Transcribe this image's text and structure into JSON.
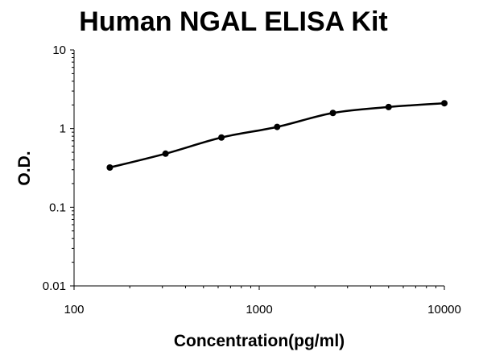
{
  "chart_data": {
    "type": "scatter",
    "title": "Human NGAL ELISA Kit",
    "xlabel": "Concentration(pg/ml)",
    "ylabel": "O.D.",
    "x_scale": "log",
    "y_scale": "log",
    "xlim": [
      100,
      10000
    ],
    "ylim": [
      0.01,
      10
    ],
    "x_ticks": [
      "100",
      "1000",
      "10000"
    ],
    "y_ticks": [
      "0.01",
      "0.1",
      "1",
      "10"
    ],
    "grid": false,
    "legend": "none",
    "series": [
      {
        "points": [
          {
            "x": 156,
            "y": 0.32
          },
          {
            "x": 312,
            "y": 0.48
          },
          {
            "x": 625,
            "y": 0.77
          },
          {
            "x": 1250,
            "y": 1.05
          },
          {
            "x": 2500,
            "y": 1.58
          },
          {
            "x": 5000,
            "y": 1.88
          },
          {
            "x": 10000,
            "y": 2.1
          }
        ],
        "trendline": true
      }
    ],
    "colors": {
      "marker": "#000000",
      "line": "#000000",
      "axis": "#000000"
    }
  }
}
